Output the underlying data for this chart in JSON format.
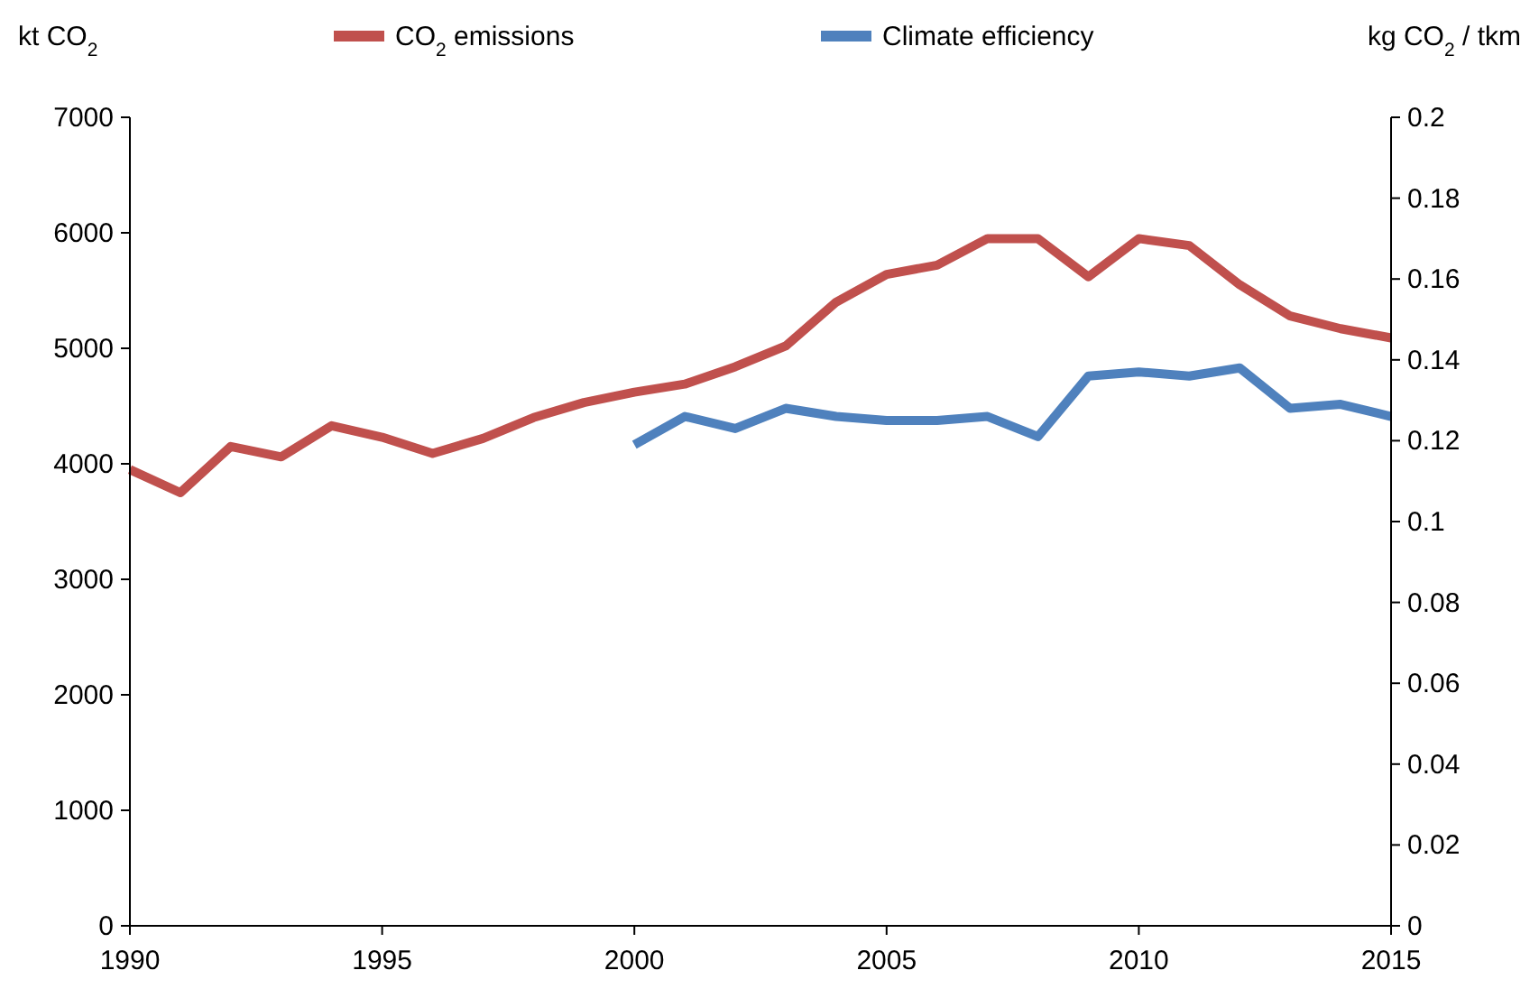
{
  "chart_data": {
    "type": "line",
    "ylabel": "kt CO$_{2}$",
    "y2label": "kg CO$_{2}$ / tkm",
    "x": [
      1990,
      1991,
      1992,
      1993,
      1994,
      1995,
      1996,
      1997,
      1998,
      1999,
      2000,
      2001,
      2002,
      2003,
      2004,
      2005,
      2006,
      2007,
      2008,
      2009,
      2010,
      2011,
      2012,
      2013,
      2014,
      2015
    ],
    "series": [
      {
        "name": "CO$_{2}$ emissions",
        "color": "#c0504d",
        "values": [
          3950,
          3750,
          4150,
          4060,
          4330,
          4230,
          4090,
          4220,
          4400,
          4530,
          4620,
          4690,
          4840,
          5020,
          5400,
          5640,
          5720,
          5950,
          5950,
          5620,
          5950,
          5890,
          5550,
          5280,
          5170,
          5090
        ]
      },
      {
        "name": "Climate efficiency",
        "color": "#4f81bd",
        "axis": "y2",
        "values": [
          null,
          null,
          null,
          null,
          null,
          null,
          null,
          null,
          null,
          null,
          0.119,
          0.126,
          0.123,
          0.128,
          0.126,
          0.125,
          0.125,
          0.126,
          0.121,
          0.136,
          0.137,
          0.136,
          0.138,
          0.128,
          0.129,
          0.126
        ]
      }
    ],
    "xlim": [
      1990,
      2015
    ],
    "xticks": [
      1990,
      1995,
      2000,
      2005,
      2010,
      2015
    ],
    "ylim": [
      0,
      7000
    ],
    "yticks": [
      0,
      1000,
      2000,
      3000,
      4000,
      5000,
      6000,
      7000
    ],
    "y2lim": [
      0,
      0.2
    ],
    "y2ticks": [
      0,
      0.02,
      0.04,
      0.06,
      0.08,
      0.1,
      0.12,
      0.14,
      0.16,
      0.18,
      0.2
    ],
    "legend": "top",
    "grid": false,
    "line_style": "solid"
  }
}
